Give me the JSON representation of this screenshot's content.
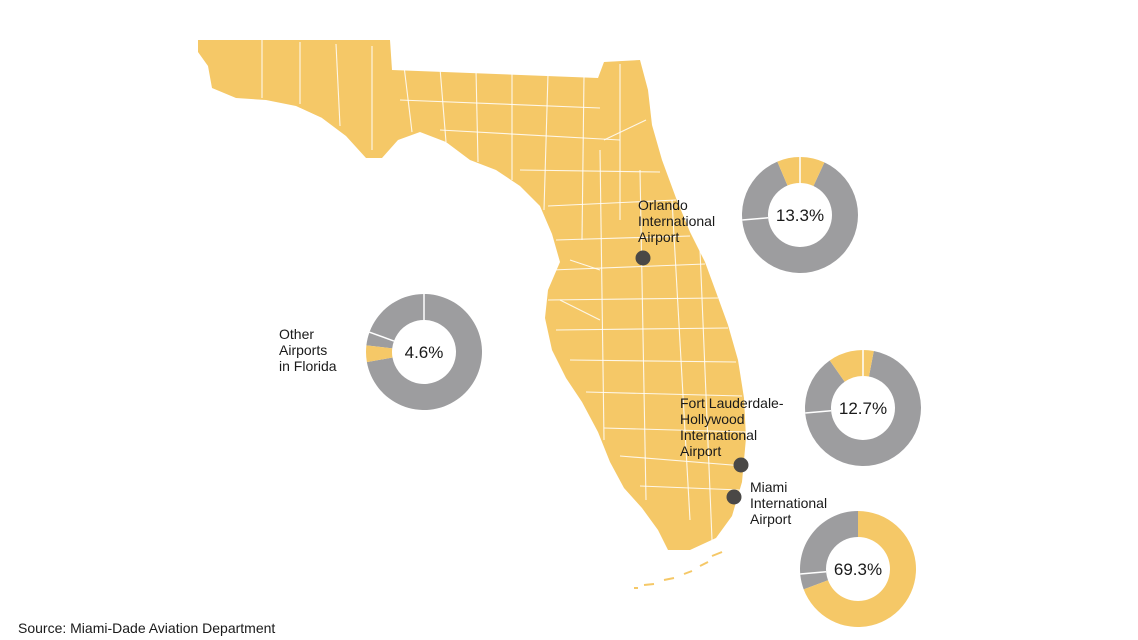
{
  "airports": [
    {
      "id": "orlando",
      "label_lines": [
        "Orlando",
        "International",
        "Airport"
      ],
      "share_label": "13.3%",
      "share": 13.3
    },
    {
      "id": "other",
      "label_lines": [
        "Other",
        "Airports",
        "in Florida"
      ],
      "share_label": "4.6%",
      "share": 4.6
    },
    {
      "id": "fort-lauderdale",
      "label_lines": [
        "Fort Lauderdale-",
        "Hollywood",
        "International",
        "Airport"
      ],
      "share_label": "12.7%",
      "share": 12.7
    },
    {
      "id": "miami",
      "label_lines": [
        "Miami",
        "International",
        "Airport"
      ],
      "share_label": "69.3%",
      "share": 69.3
    }
  ],
  "colors": {
    "state": "#f5c867",
    "highlight": "#f5c867",
    "rest": "#9d9d9f",
    "marker": "#4a4846",
    "divider": "#ffffff"
  },
  "source": "Source: Miami-Dade Aviation Department"
}
